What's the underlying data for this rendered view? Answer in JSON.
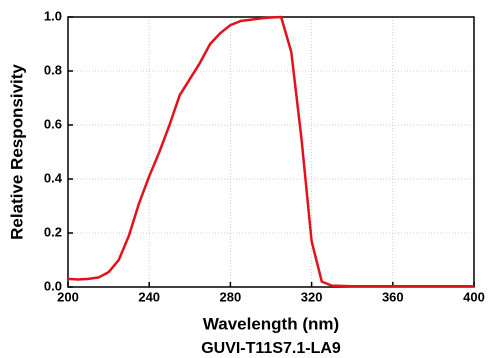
{
  "chart_data": {
    "type": "line",
    "xlabel": "Wavelength (nm)",
    "ylabel": "Relative Responsivity",
    "caption": "GUVI-T11S7.1-LA9",
    "x": [
      200,
      205,
      210,
      215,
      220,
      225,
      230,
      235,
      240,
      245,
      250,
      255,
      260,
      265,
      270,
      275,
      280,
      285,
      290,
      295,
      300,
      305,
      310,
      315,
      320,
      325,
      330,
      340,
      360,
      380,
      400
    ],
    "series": [
      {
        "color": "#e3111b",
        "values": [
          0.03,
          0.028,
          0.03,
          0.035,
          0.055,
          0.1,
          0.19,
          0.31,
          0.41,
          0.5,
          0.6,
          0.71,
          0.77,
          0.83,
          0.9,
          0.94,
          0.97,
          0.985,
          0.99,
          0.995,
          0.998,
          1.0,
          0.87,
          0.55,
          0.17,
          0.02,
          0.005,
          0.003,
          0.003,
          0.003,
          0.003
        ]
      }
    ],
    "xlim": [
      200,
      400
    ],
    "xticks": [
      200,
      240,
      280,
      320,
      360,
      400
    ],
    "ylim": [
      0,
      1
    ],
    "yticks": [
      {
        "value": 0,
        "label": "0.0"
      },
      0.2,
      0.4,
      0.6,
      0.8,
      {
        "value": 1,
        "label": "1.0"
      }
    ],
    "grid": true
  }
}
